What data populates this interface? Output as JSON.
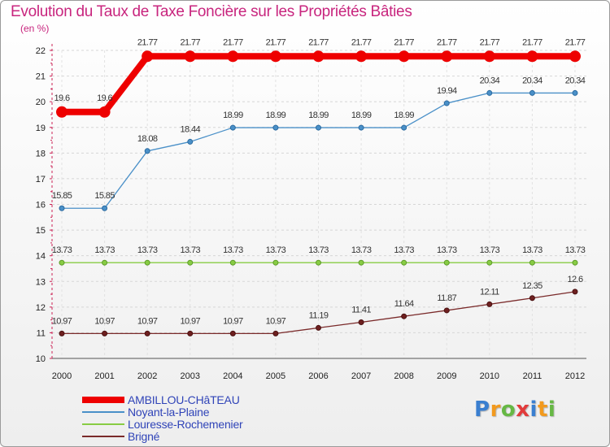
{
  "chart_data": {
    "type": "line",
    "title": "Evolution du Taux de Taxe Foncière sur les Propriétés Bâties",
    "ylabel": "(en %)",
    "xlabel": "",
    "categories": [
      "2000",
      "2001",
      "2002",
      "2003",
      "2004",
      "2005",
      "2006",
      "2007",
      "2008",
      "2009",
      "2010",
      "2011",
      "2012"
    ],
    "ylim": [
      10,
      22
    ],
    "yticks": [
      "10",
      "11",
      "12",
      "13",
      "14",
      "15",
      "16",
      "17",
      "18",
      "19",
      "20",
      "21",
      "22"
    ],
    "series": [
      {
        "name": "AMBILLOU-CHâTEAU",
        "color": "#ee0000",
        "values": [
          19.6,
          19.6,
          21.77,
          21.77,
          21.77,
          21.77,
          21.77,
          21.77,
          21.77,
          21.77,
          21.77,
          21.77,
          21.77
        ],
        "labels": [
          "19.6",
          "19.6",
          "21.77",
          "21.77",
          "21.77",
          "21.77",
          "21.77",
          "21.77",
          "21.77",
          "21.77",
          "21.77",
          "21.77",
          "21.77"
        ]
      },
      {
        "name": "Noyant-la-Plaine",
        "color": "#4a90c8",
        "values": [
          15.85,
          15.85,
          18.08,
          18.44,
          18.99,
          18.99,
          18.99,
          18.99,
          18.99,
          19.94,
          20.34,
          20.34,
          20.34
        ],
        "labels": [
          "15.85",
          "15.85",
          "18.08",
          "18.44",
          "18.99",
          "18.99",
          "18.99",
          "18.99",
          "18.99",
          "19.94",
          "20.34",
          "20.34",
          "20.34"
        ]
      },
      {
        "name": "Louresse-Rochemenier",
        "color": "#88cc44",
        "values": [
          13.73,
          13.73,
          13.73,
          13.73,
          13.73,
          13.73,
          13.73,
          13.73,
          13.73,
          13.73,
          13.73,
          13.73,
          13.73
        ],
        "labels": [
          "13.73",
          "13.73",
          "13.73",
          "13.73",
          "13.73",
          "13.73",
          "13.73",
          "13.73",
          "13.73",
          "13.73",
          "13.73",
          "13.73",
          "13.73"
        ]
      },
      {
        "name": "Brigné",
        "color": "#7a2a2a",
        "values": [
          10.97,
          10.97,
          10.97,
          10.97,
          10.97,
          10.97,
          11.19,
          11.41,
          11.64,
          11.87,
          12.11,
          12.35,
          12.6
        ],
        "labels": [
          "10.97",
          "10.97",
          "10.97",
          "10.97",
          "10.97",
          "10.97",
          "11.19",
          "11.41",
          "11.64",
          "11.87",
          "12.11",
          "12.35",
          "12.6"
        ]
      }
    ],
    "legend_position": "bottom-left"
  },
  "logo": {
    "letters": [
      "P",
      "r",
      "o",
      "x",
      "i",
      "t",
      "i"
    ],
    "colors": [
      "#3a7fd0",
      "#f29a1e",
      "#66b844",
      "#e23b3b",
      "#3a7fd0",
      "#f29a1e",
      "#66b844"
    ]
  }
}
